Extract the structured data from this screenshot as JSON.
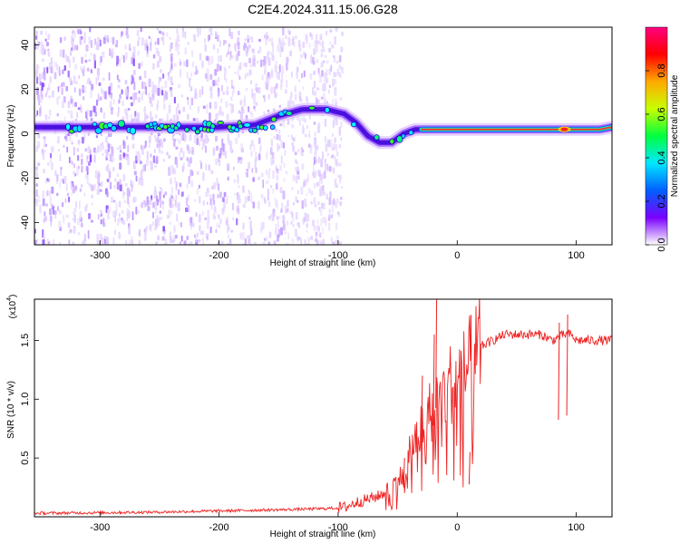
{
  "title": "C2E4.2024.311.15.06.G28",
  "chart_data": [
    {
      "type": "heatmap",
      "xlabel": "Height of straight line (km)",
      "ylabel": "Frequency (Hz)",
      "xlim": [
        -355,
        130
      ],
      "ylim": [
        -50,
        48
      ],
      "x_ticks": [
        -300,
        -200,
        -100,
        0,
        100
      ],
      "x_tick_labels": [
        "-300",
        "-200",
        "-100",
        "0",
        "100"
      ],
      "y_ticks": [
        -40,
        -20,
        0,
        20,
        40
      ],
      "y_tick_labels": [
        "-40",
        "-20",
        "0",
        "20",
        "40"
      ],
      "noise_extent_km": [
        -355,
        -97
      ],
      "ridge_frequency": {
        "x": [
          -350,
          -300,
          -250,
          -200,
          -170,
          -150,
          -130,
          -110,
          -95,
          -85,
          -75,
          -65,
          -55,
          -45,
          -35,
          -20,
          0,
          30,
          60,
          90,
          120,
          130
        ],
        "y": [
          3,
          3,
          3,
          3,
          4,
          8,
          11,
          11,
          9,
          5,
          -1,
          -4,
          -4,
          0,
          2,
          2,
          2,
          2,
          2,
          2,
          2,
          3
        ]
      },
      "secondary_ridge_frequency": {
        "x": [
          -260,
          -230,
          -210,
          -190,
          -170,
          -150
        ],
        "y": [
          4,
          3,
          1,
          3,
          2,
          3
        ]
      },
      "colorbar": {
        "label": "Normalized spectral amplitude",
        "range": [
          0.0,
          1.0
        ],
        "ticks": [
          0.0,
          0.2,
          0.4,
          0.6,
          0.8
        ],
        "tick_labels": [
          "0.0",
          "0.2",
          "0.4",
          "0.6",
          "0.8"
        ],
        "colors": [
          "#ffffff",
          "#7a00ff",
          "#0060ff",
          "#00e8ff",
          "#00ff40",
          "#c8ff00",
          "#ffaa00",
          "#ff0000",
          "#ff0080"
        ]
      }
    },
    {
      "type": "line",
      "xlabel": "Height of straight line (km)",
      "ylabel": "SNR (10 * v/v)",
      "y_scale_label": "(x10",
      "y_scale_exponent": "4",
      "y_scale_suffix": ")",
      "xlim": [
        -355,
        130
      ],
      "ylim": [
        0.0,
        1.85
      ],
      "x_ticks": [
        -300,
        -200,
        -100,
        0,
        100
      ],
      "x_tick_labels": [
        "-300",
        "-200",
        "-100",
        "0",
        "100"
      ],
      "y_ticks": [
        0.5,
        1.0,
        1.5
      ],
      "y_tick_labels": [
        "0.5",
        "1.0",
        "1.5"
      ],
      "color": "#ee2222",
      "series": [
        {
          "x": [
            -355,
            -300,
            -250,
            -200,
            -150,
            -110,
            -95,
            -85,
            -75,
            -65,
            -55,
            -50,
            -45,
            -40,
            -35,
            -30,
            -25,
            -20,
            -18,
            -15,
            -10,
            -5,
            0,
            10,
            20,
            30,
            40,
            50,
            60,
            70,
            80,
            90,
            95,
            100,
            110,
            120,
            130
          ],
          "y": [
            0.03,
            0.035,
            0.04,
            0.05,
            0.06,
            0.07,
            0.08,
            0.12,
            0.15,
            0.18,
            0.25,
            0.32,
            0.35,
            0.55,
            0.65,
            0.75,
            0.85,
            0.95,
            0.95,
            1.0,
            1.05,
            1.15,
            1.15,
            1.3,
            1.45,
            1.5,
            1.55,
            1.55,
            1.55,
            1.55,
            1.5,
            1.55,
            1.55,
            1.5,
            1.5,
            1.5,
            1.5
          ]
        }
      ],
      "spikes": [
        {
          "x": -18,
          "y": 1.85
        },
        {
          "x": -20,
          "y": 1.55
        },
        {
          "x": -30,
          "y": 1.2
        },
        {
          "x": -45,
          "y": 0.5
        },
        {
          "x": 92,
          "y": 1.72
        },
        {
          "x": 85,
          "y": 1.65
        },
        {
          "x": 10,
          "y": 0.55
        }
      ]
    }
  ]
}
